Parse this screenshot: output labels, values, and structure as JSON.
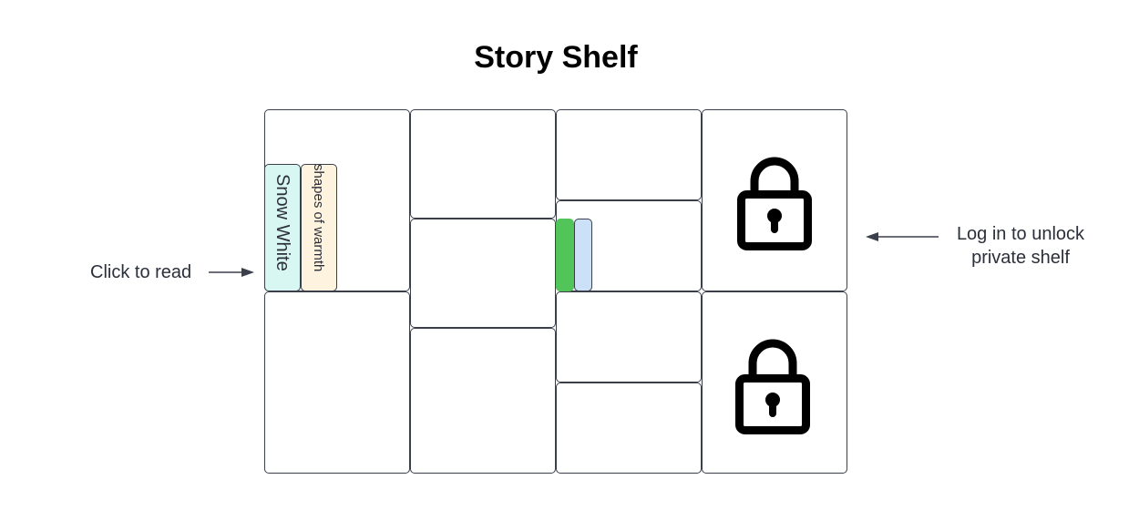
{
  "title": "Story Shelf",
  "books": [
    {
      "title": "Snow White",
      "color": "#d9f7f2"
    },
    {
      "title": "shapes of warmth",
      "color": "#fdf3de"
    },
    {
      "title": "",
      "color": "#52c55a"
    },
    {
      "title": "",
      "color": "#cce0f7"
    }
  ],
  "annotations": {
    "click_to_read": "Click to read",
    "unlock_line1": "Log in to unlock",
    "unlock_line2": "private shelf"
  },
  "lock_icon": "padlock-icon"
}
